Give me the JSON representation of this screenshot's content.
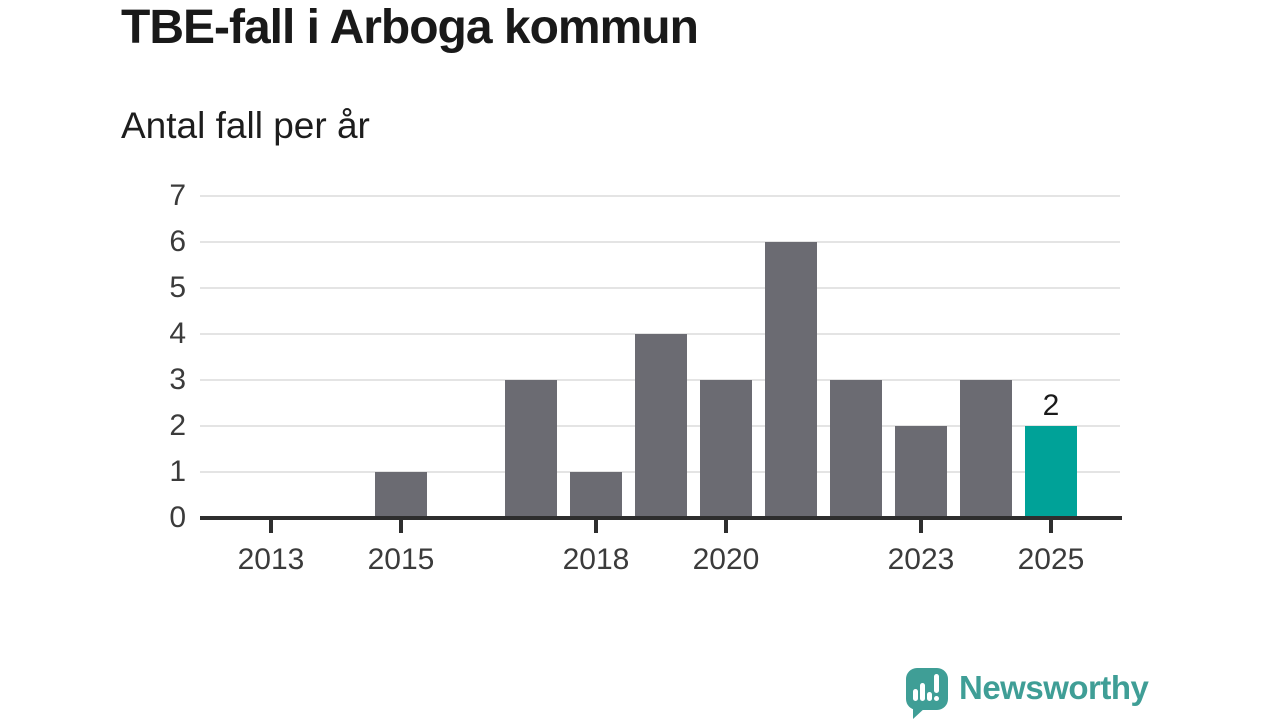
{
  "header": {
    "title": "TBE-fall i Arboga kommun",
    "subtitle": "Antal fall per år"
  },
  "chart_data": {
    "type": "bar",
    "title": "TBE-fall i Arboga kommun",
    "ylabel": "Antal fall per år",
    "categories": [
      "2013",
      "2014",
      "2015",
      "2016",
      "2017",
      "2018",
      "2019",
      "2020",
      "2021",
      "2022",
      "2023",
      "2024",
      "2025"
    ],
    "values": [
      0,
      0,
      1,
      0,
      3,
      1,
      4,
      3,
      6,
      3,
      2,
      3,
      2
    ],
    "ylim": [
      0,
      7
    ],
    "yticks": [
      0,
      1,
      2,
      3,
      4,
      5,
      6,
      7
    ],
    "xtick_labels": [
      "2013",
      "2015",
      "2018",
      "2020",
      "2023",
      "2025"
    ],
    "grid": true,
    "legend_position": "none",
    "bar_color": "#6b6b72",
    "gridline_color": "#e4e4e4",
    "axis_color": "#2e2e2e",
    "highlight": {
      "category": "2025",
      "value_label": "2",
      "color": "#00a298"
    }
  },
  "footer": {
    "brand_name": "Newsworthy",
    "brand_color": "#3f9e96",
    "logo_icon": "newsworthy-speech-bubble-bar-chart-icon"
  }
}
